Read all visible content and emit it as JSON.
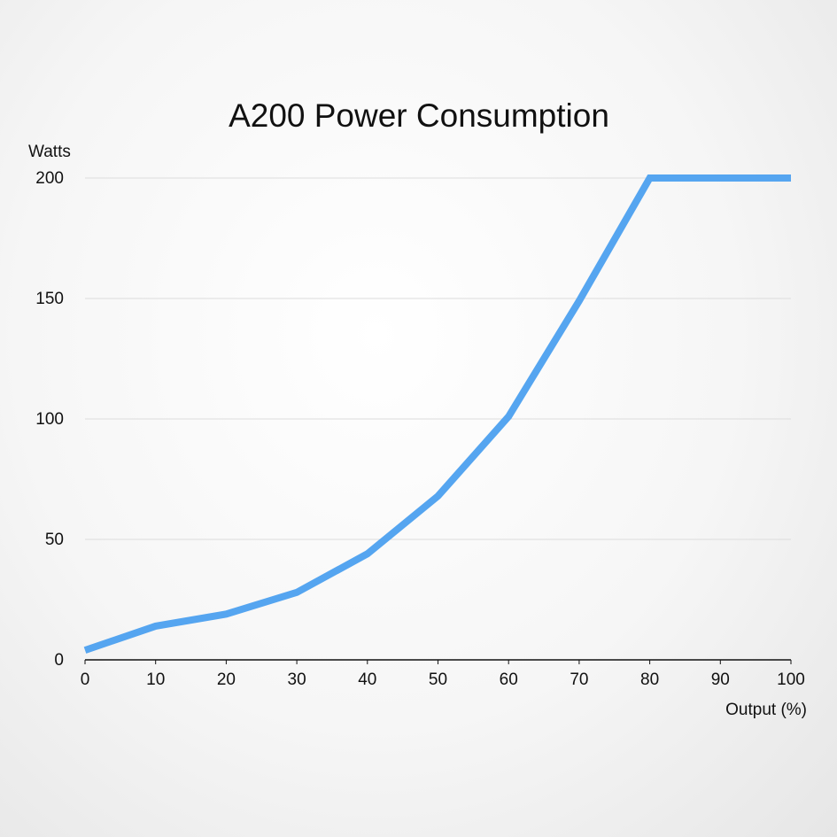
{
  "chart_data": {
    "type": "line",
    "title": "A200 Power Consumption",
    "y_label": "Watts",
    "x_label": "Output (%)",
    "x": [
      0,
      10,
      20,
      30,
      40,
      50,
      60,
      70,
      80,
      90,
      100
    ],
    "values": [
      4,
      14,
      19,
      28,
      44,
      68,
      101,
      149,
      200,
      200,
      200
    ],
    "color": "#55a5f0",
    "xlim": [
      0,
      100
    ],
    "xticks": [
      0,
      10,
      20,
      30,
      40,
      50,
      60,
      70,
      80,
      90,
      100
    ],
    "ylim": [
      0,
      200
    ],
    "yticks": [
      0,
      50,
      100,
      150,
      200
    ],
    "grid": true
  }
}
